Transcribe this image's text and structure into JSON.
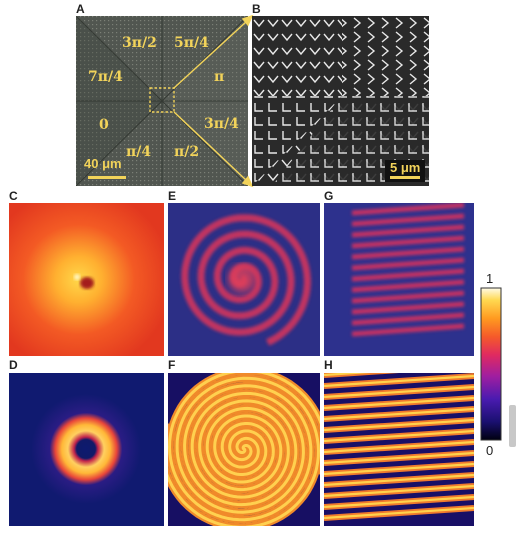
{
  "figure": {
    "panel_labels": [
      "A",
      "B",
      "C",
      "D",
      "E",
      "F",
      "G",
      "H"
    ],
    "panel_a": {
      "phase_labels": [
        "3π/2",
        "5π/4",
        "7π/4",
        "π",
        "0",
        "3π/4",
        "π/4",
        "π/2"
      ],
      "scale_bar": "40 μm"
    },
    "panel_b": {
      "scale_bar": "5 μm"
    },
    "colorbar": {
      "max_label": "1",
      "min_label": "0"
    }
  },
  "colors": {
    "label_yellow": "#f2d35a",
    "colormap": [
      "#000010",
      "#1a1070",
      "#4a1bb0",
      "#a01ea0",
      "#e02a60",
      "#f55a2a",
      "#ff9a20",
      "#ffd850",
      "#fffbe8"
    ]
  }
}
